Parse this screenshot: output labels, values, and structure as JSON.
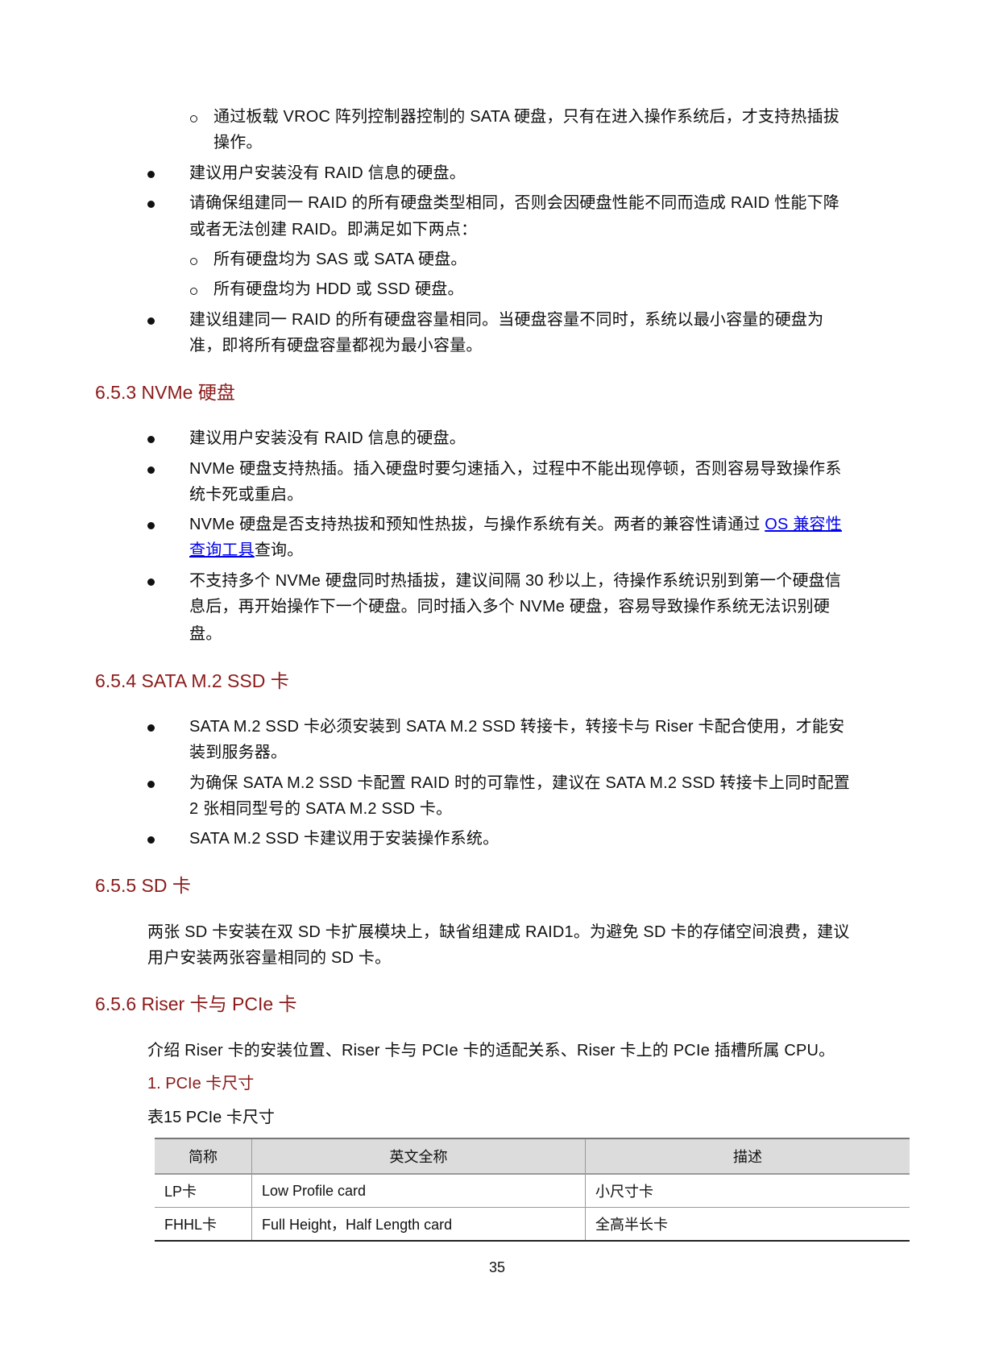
{
  "blocks": [
    {
      "marker": "circle",
      "lines": [
        [
          {
            "t": "通过板载 VROC 阵列控制器控制的 SATA 硬盘，只有在进入操作系统后，才支持热插拔"
          }
        ],
        [
          {
            "t": "操作。"
          }
        ]
      ]
    },
    {
      "marker": "dot",
      "lines": [
        [
          {
            "t": "建议用户安装没有 RAID 信息的硬盘。"
          }
        ]
      ]
    },
    {
      "marker": "dot",
      "lines": [
        [
          {
            "t": "请确保组建同一 RAID 的所有硬盘类型相同，否则会因硬盘性能不同而造成 RAID 性能下降"
          }
        ],
        [
          {
            "t": "或者无法创建 RAID。即满足如下两点："
          }
        ]
      ]
    },
    {
      "marker": "circle",
      "lines": [
        [
          {
            "t": "所有硬盘均为 SAS 或 SATA 硬盘。"
          }
        ]
      ]
    },
    {
      "marker": "circle",
      "lines": [
        [
          {
            "t": "所有硬盘均为 HDD 或 SSD 硬盘。"
          }
        ]
      ]
    },
    {
      "marker": "dot",
      "lines": [
        [
          {
            "t": "建议组建同一 RAID 的所有硬盘容量相同。当硬盘容量不同时，系统以最小容量的硬盘为"
          }
        ],
        [
          {
            "t": "准，即将所有硬盘容量都视为最小容量。"
          }
        ]
      ]
    },
    {
      "marker": "heading",
      "lines": [
        [
          {
            "t": "6.5.3  NVMe 硬盘"
          }
        ]
      ]
    },
    {
      "marker": "dot",
      "lines": [
        [
          {
            "t": "建议用户安装没有 RAID 信息的硬盘。"
          }
        ]
      ]
    },
    {
      "marker": "dot",
      "lines": [
        [
          {
            "t": "NVMe 硬盘支持热插。插入硬盘时要匀速插入，过程中不能出现停顿，否则容易导致操作系"
          }
        ],
        [
          {
            "t": "统卡死或重启。"
          }
        ]
      ]
    },
    {
      "marker": "dot",
      "lines": [
        [
          {
            "t": "NVMe 硬盘是否支持热拔和预知性热拔，与操作系统有关。两者的兼容性请通过 "
          },
          {
            "t": "OS 兼容性",
            "link": true
          }
        ],
        [
          {
            "t": "查询工具",
            "link": true
          },
          {
            "t": "查询。"
          }
        ]
      ]
    },
    {
      "marker": "dot",
      "lines": [
        [
          {
            "t": "不支持多个 NVMe 硬盘同时热插拔，建议间隔 30 秒以上，待操作系统识别到第一个硬盘信"
          }
        ],
        [
          {
            "t": "息后，再开始操作下一个硬盘。同时插入多个 NVMe 硬盘，容易导致操作系统无法识别硬"
          }
        ],
        [
          {
            "t": "盘。"
          }
        ]
      ]
    },
    {
      "marker": "heading",
      "lines": [
        [
          {
            "t": "6.5.4  SATA M.2 SSD 卡"
          }
        ]
      ]
    },
    {
      "marker": "dot",
      "lines": [
        [
          {
            "t": "SATA M.2 SSD 卡必须安装到 SATA M.2 SSD 转接卡，转接卡与 Riser 卡配合使用，才能安"
          }
        ],
        [
          {
            "t": "装到服务器。"
          }
        ]
      ]
    },
    {
      "marker": "dot",
      "lines": [
        [
          {
            "t": "为确保 SATA M.2 SSD 卡配置 RAID 时的可靠性，建议在 SATA M.2 SSD 转接卡上同时配置"
          }
        ],
        [
          {
            "t": "2 张相同型号的 SATA M.2 SSD 卡。"
          }
        ]
      ]
    },
    {
      "marker": "dot",
      "lines": [
        [
          {
            "t": "SATA M.2 SSD 卡建议用于安装操作系统。"
          }
        ]
      ]
    },
    {
      "marker": "heading",
      "lines": [
        [
          {
            "t": "6.5.5  SD 卡"
          }
        ]
      ]
    },
    {
      "marker": "para",
      "lines": [
        [
          {
            "t": "两张 SD 卡安装在双 SD 卡扩展模块上，缺省组建成 RAID1。为避免 SD 卡的存储空间浪费，建议"
          }
        ],
        [
          {
            "t": "用户安装两张容量相同的 SD 卡。"
          }
        ]
      ]
    },
    {
      "marker": "heading",
      "lines": [
        [
          {
            "t": "6.5.6  Riser 卡与 PCIe 卡"
          }
        ]
      ]
    },
    {
      "marker": "para",
      "lines": [
        [
          {
            "t": "介绍 Riser 卡的安装位置、Riser 卡与 PCIe 卡的适配关系、Riser 卡上的 PCIe 插槽所属 CPU。"
          }
        ]
      ]
    },
    {
      "marker": "subheading",
      "lines": [
        [
          {
            "t": "1. PCIe 卡尺寸"
          }
        ]
      ]
    },
    {
      "marker": "caption",
      "lines": [
        [
          {
            "t": "表15 PCIe 卡尺寸"
          }
        ]
      ]
    }
  ],
  "table": {
    "headers": [
      "简称",
      "英文全称",
      "描述"
    ],
    "rows": [
      [
        "LP卡",
        "Low Profile card",
        "小尺寸卡"
      ],
      [
        "FHHL卡",
        "Full Height，Half Length card",
        "全高半长卡"
      ]
    ]
  },
  "page_number": "35",
  "colors": {
    "heading": "#8b1a1a",
    "link": "#0000ee",
    "table_header_bg": "#dcdcdc"
  }
}
